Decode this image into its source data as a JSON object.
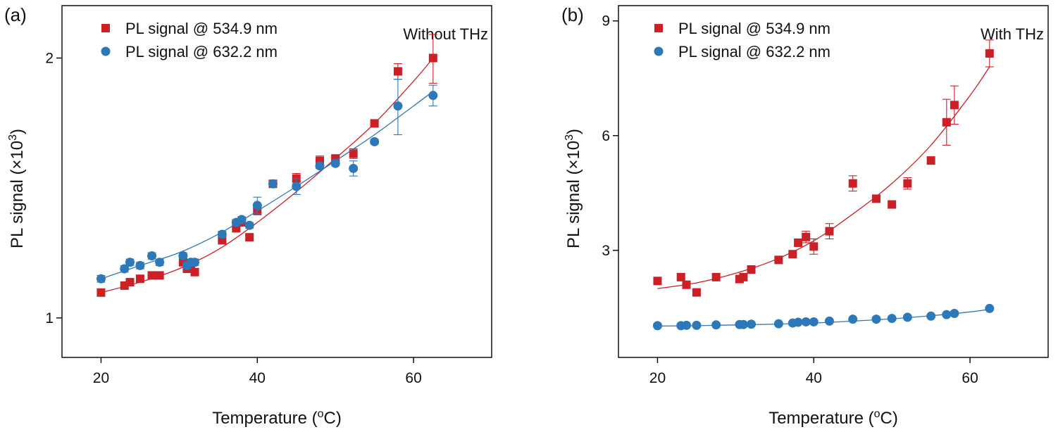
{
  "chart_data": [
    {
      "type": "scatter",
      "panel_label": "(a)",
      "annotation": "Without THz",
      "xlabel": "Temperature (",
      "xlabel_sup": "o",
      "xlabel_tail": "C)",
      "ylabel": "PL signal (×10",
      "ylabel_sup": "3",
      "ylabel_tail": ")",
      "xlim": [
        15,
        70
      ],
      "ylim": [
        0.9,
        2.3
      ],
      "yscale": "log",
      "xticks": [
        20,
        40,
        60
      ],
      "xtick_labels": [
        "20",
        "40",
        "60"
      ],
      "yticks": [
        1,
        2
      ],
      "ytick_labels": [
        "1",
        "2"
      ],
      "legend_location": "top-left",
      "series": [
        {
          "name": "PL signal @ 534.9 nm",
          "marker": "square",
          "color": "#cc2027",
          "x": [
            20,
            23,
            23.7,
            25,
            26.5,
            27.5,
            30.5,
            31,
            31.5,
            32,
            35.5,
            37.3,
            38,
            39,
            40,
            42,
            45,
            48,
            50,
            52.3,
            55,
            58,
            62.5
          ],
          "y": [
            1.07,
            1.09,
            1.1,
            1.11,
            1.12,
            1.12,
            1.16,
            1.14,
            1.15,
            1.13,
            1.23,
            1.27,
            1.29,
            1.24,
            1.33,
            1.43,
            1.45,
            1.52,
            1.53,
            1.55,
            1.68,
            1.93,
            2.0
          ],
          "yerr": [
            0.01,
            0.01,
            0.01,
            0.01,
            0.01,
            0.01,
            0.01,
            0.01,
            0.01,
            0.01,
            0.01,
            0.01,
            0.01,
            0.01,
            0.01,
            0.01,
            0.02,
            0.02,
            0.01,
            0.02,
            0.01,
            0.04,
            0.13
          ],
          "fit_x": [
            20,
            25,
            30,
            35,
            40,
            45,
            50,
            55,
            60,
            62.5
          ],
          "fit_y": [
            1.07,
            1.1,
            1.14,
            1.2,
            1.29,
            1.4,
            1.53,
            1.68,
            1.88,
            2.0
          ]
        },
        {
          "name": "PL signal @ 632.2 nm",
          "marker": "circle",
          "color": "#2c78b9",
          "x": [
            20,
            23,
            23.7,
            25,
            26.5,
            27.5,
            30.5,
            31,
            31.5,
            32,
            35.5,
            37.3,
            38,
            39,
            40,
            42,
            45,
            48,
            50,
            52.3,
            55,
            58,
            62.5
          ],
          "y": [
            1.11,
            1.14,
            1.16,
            1.15,
            1.18,
            1.16,
            1.18,
            1.15,
            1.16,
            1.16,
            1.25,
            1.29,
            1.3,
            1.28,
            1.35,
            1.43,
            1.42,
            1.5,
            1.51,
            1.49,
            1.6,
            1.76,
            1.81
          ],
          "yerr": [
            0.01,
            0.01,
            0.01,
            0.01,
            0.01,
            0.01,
            0.01,
            0.01,
            0.01,
            0.01,
            0.01,
            0.01,
            0.01,
            0.01,
            0.03,
            0.01,
            0.03,
            0.01,
            0.01,
            0.03,
            0.01,
            0.13,
            0.05
          ],
          "fit_x": [
            20,
            25,
            30,
            35,
            40,
            45,
            50,
            55,
            60,
            62.5
          ],
          "fit_y": [
            1.11,
            1.15,
            1.19,
            1.25,
            1.33,
            1.42,
            1.52,
            1.63,
            1.76,
            1.83
          ]
        }
      ]
    },
    {
      "type": "scatter",
      "panel_label": "(b)",
      "annotation": "With THz",
      "xlabel": "Temperature (",
      "xlabel_sup": "o",
      "xlabel_tail": "C)",
      "ylabel": "PL signal (×10",
      "ylabel_sup": "3",
      "ylabel_tail": ")",
      "xlim": [
        15,
        70
      ],
      "ylim": [
        0.2,
        9.4
      ],
      "yscale": "linear",
      "xticks": [
        20,
        40,
        60
      ],
      "xtick_labels": [
        "20",
        "40",
        "60"
      ],
      "yticks": [
        3,
        6,
        9
      ],
      "ytick_labels": [
        "3",
        "6",
        "9"
      ],
      "legend_location": "top-left",
      "series": [
        {
          "name": "PL signal @ 534.9 nm",
          "marker": "square",
          "color": "#cc2027",
          "x": [
            20,
            23,
            23.7,
            25,
            27.5,
            30.5,
            31,
            32,
            35.5,
            37.3,
            38,
            39,
            40,
            42,
            45,
            48,
            50,
            52,
            55,
            57,
            58,
            62.5
          ],
          "y": [
            2.2,
            2.3,
            2.1,
            1.9,
            2.3,
            2.25,
            2.3,
            2.5,
            2.75,
            2.9,
            3.2,
            3.35,
            3.1,
            3.5,
            4.75,
            4.35,
            4.2,
            4.75,
            5.35,
            6.35,
            6.8,
            8.15
          ],
          "yerr": [
            0,
            0,
            0,
            0,
            0,
            0,
            0,
            0,
            0,
            0,
            0,
            0.15,
            0.2,
            0.2,
            0.2,
            0,
            0,
            0.15,
            0,
            0.6,
            0.5,
            0.35
          ],
          "fit_x": [
            20,
            25,
            30,
            35,
            40,
            45,
            50,
            55,
            60,
            62.5
          ],
          "fit_y": [
            2.0,
            2.15,
            2.4,
            2.75,
            3.25,
            3.95,
            4.75,
            5.75,
            7.05,
            7.8
          ]
        },
        {
          "name": "PL signal @ 632.2 nm",
          "marker": "circle",
          "color": "#2c78b9",
          "x": [
            20,
            23,
            23.7,
            25,
            27.5,
            30.5,
            31,
            32,
            35.5,
            37.3,
            38,
            39,
            40,
            42,
            45,
            48,
            50,
            52,
            55,
            57,
            58,
            62.5
          ],
          "y": [
            1.03,
            1.03,
            1.04,
            1.04,
            1.05,
            1.06,
            1.06,
            1.07,
            1.08,
            1.1,
            1.12,
            1.13,
            1.13,
            1.15,
            1.2,
            1.2,
            1.22,
            1.25,
            1.28,
            1.32,
            1.35,
            1.48
          ],
          "yerr": [
            0,
            0,
            0,
            0,
            0,
            0,
            0,
            0,
            0,
            0,
            0,
            0,
            0,
            0,
            0,
            0,
            0,
            0,
            0,
            0,
            0,
            0
          ],
          "fit_x": [
            20,
            25,
            30,
            35,
            40,
            45,
            50,
            55,
            60,
            62.5
          ],
          "fit_y": [
            1.02,
            1.03,
            1.05,
            1.07,
            1.1,
            1.15,
            1.21,
            1.29,
            1.39,
            1.46
          ]
        }
      ]
    }
  ]
}
